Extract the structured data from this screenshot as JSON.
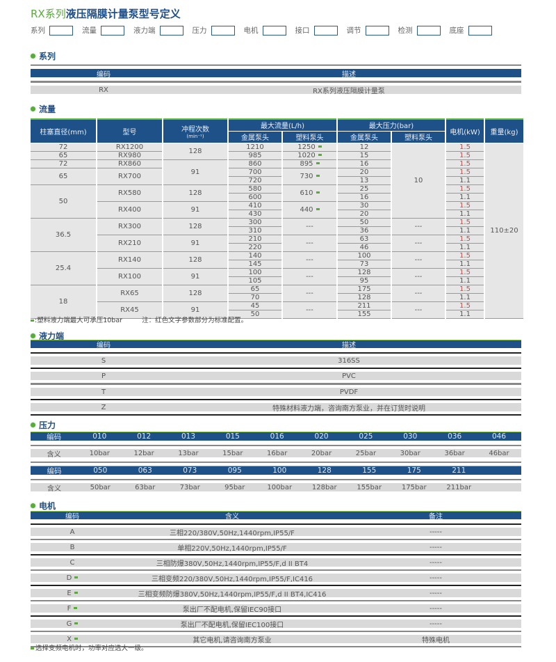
{
  "title": {
    "prefix": "RX系列",
    "main": "液压隔膜计量泵型号定义"
  },
  "code_fields": [
    "系列",
    "流量",
    "液力端",
    "压力",
    "电机",
    "接口",
    "调节",
    "检测",
    "底座"
  ],
  "colors": {
    "header_blue": "#1f5189",
    "accent_green": "#5aab3c",
    "standard_red": "#c0504d",
    "row_gray": "#d9d9d9"
  },
  "series": {
    "heading": "系列",
    "headers": [
      "编码",
      "描述"
    ],
    "rows": [
      [
        "RX",
        "RX系列液压隔膜计量泵"
      ]
    ]
  },
  "flow": {
    "heading": "流量",
    "headers": {
      "diameter": "柱塞直径(mm)",
      "model": "型号",
      "stroke": "冲程次数",
      "stroke_unit": "(min⁻¹)",
      "max_flow": "最大流量(L/h)",
      "max_pressure": "最大压力(bar)",
      "metal": "金属泵头",
      "plastic": "塑料泵头",
      "motor": "电机(kW)",
      "weight": "重量(kg)"
    },
    "columns": {
      "diameter": [
        {
          "v": "72",
          "span": 1
        },
        {
          "v": "65",
          "span": 1
        },
        {
          "v": "72",
          "span": 1
        },
        {
          "v": "65",
          "span": 2
        },
        {
          "v": "50",
          "span": 4
        },
        {
          "v": "36.5",
          "span": 4
        },
        {
          "v": "25.4",
          "span": 4
        },
        {
          "v": "18",
          "span": 4
        }
      ],
      "model": [
        {
          "v": "RX1200",
          "span": 1
        },
        {
          "v": "RX980",
          "span": 1
        },
        {
          "v": "RX860",
          "span": 1
        },
        {
          "v": "RX700",
          "span": 2
        },
        {
          "v": "RX580",
          "span": 2
        },
        {
          "v": "RX400",
          "span": 2
        },
        {
          "v": "RX300",
          "span": 2
        },
        {
          "v": "RX210",
          "span": 2
        },
        {
          "v": "RX140",
          "span": 2
        },
        {
          "v": "RX100",
          "span": 2
        },
        {
          "v": "RX65",
          "span": 2
        },
        {
          "v": "RX45",
          "span": 2
        }
      ],
      "stroke": [
        {
          "v": "128",
          "span": 2
        },
        {
          "v": "91",
          "span": 3
        },
        {
          "v": "128",
          "span": 2
        },
        {
          "v": "91",
          "span": 2
        },
        {
          "v": "128",
          "span": 2
        },
        {
          "v": "91",
          "span": 2
        },
        {
          "v": "128",
          "span": 2
        },
        {
          "v": "91",
          "span": 2
        },
        {
          "v": "128",
          "span": 2
        },
        {
          "v": "91",
          "span": 2
        }
      ],
      "flow_metal": [
        {
          "v": "1210",
          "span": 1
        },
        {
          "v": "985",
          "span": 1
        },
        {
          "v": "860",
          "span": 1
        },
        {
          "v": "700",
          "span": 1
        },
        {
          "v": "720",
          "span": 1
        },
        {
          "v": "580",
          "span": 1
        },
        {
          "v": "600",
          "span": 1
        },
        {
          "v": "410",
          "span": 1
        },
        {
          "v": "430",
          "span": 1
        },
        {
          "v": "300",
          "span": 1
        },
        {
          "v": "310",
          "span": 1
        },
        {
          "v": "210",
          "span": 1
        },
        {
          "v": "220",
          "span": 1
        },
        {
          "v": "140",
          "span": 1
        },
        {
          "v": "145",
          "span": 1
        },
        {
          "v": "100",
          "span": 1
        },
        {
          "v": "105",
          "span": 1
        },
        {
          "v": "65",
          "span": 1
        },
        {
          "v": "70",
          "span": 1
        },
        {
          "v": "45",
          "span": 1
        },
        {
          "v": "50",
          "span": 1
        }
      ],
      "flow_plastic": [
        {
          "v": "1250",
          "span": 1,
          "mark": true
        },
        {
          "v": "1020",
          "span": 1,
          "mark": true
        },
        {
          "v": "895",
          "span": 1,
          "mark": true
        },
        {
          "v": "730",
          "span": 2,
          "mark": true
        },
        {
          "v": "610",
          "span": 2,
          "mark": true
        },
        {
          "v": "440",
          "span": 2,
          "mark": true
        },
        {
          "v": "---",
          "span": 2
        },
        {
          "v": "---",
          "span": 2
        },
        {
          "v": "---",
          "span": 2
        },
        {
          "v": "---",
          "span": 2
        },
        {
          "v": "---",
          "span": 2
        },
        {
          "v": "---",
          "span": 2
        }
      ],
      "pressure_metal": [
        {
          "v": "12",
          "span": 1
        },
        {
          "v": "15",
          "span": 1
        },
        {
          "v": "16",
          "span": 1
        },
        {
          "v": "20",
          "span": 1
        },
        {
          "v": "13",
          "span": 1
        },
        {
          "v": "25",
          "span": 1
        },
        {
          "v": "16",
          "span": 1
        },
        {
          "v": "30",
          "span": 1
        },
        {
          "v": "20",
          "span": 1
        },
        {
          "v": "50",
          "span": 1
        },
        {
          "v": "36",
          "span": 1
        },
        {
          "v": "63",
          "span": 1
        },
        {
          "v": "46",
          "span": 1
        },
        {
          "v": "100",
          "span": 1
        },
        {
          "v": "73",
          "span": 1
        },
        {
          "v": "128",
          "span": 1
        },
        {
          "v": "95",
          "span": 1
        },
        {
          "v": "175",
          "span": 1
        },
        {
          "v": "128",
          "span": 1
        },
        {
          "v": "211",
          "span": 1
        },
        {
          "v": "155",
          "span": 1
        }
      ],
      "pressure_plastic": [
        {
          "v": "10",
          "span": 9
        },
        {
          "v": "---",
          "span": 2
        },
        {
          "v": "---",
          "span": 2
        },
        {
          "v": "---",
          "span": 2
        },
        {
          "v": "---",
          "span": 2
        },
        {
          "v": "---",
          "span": 2
        },
        {
          "v": "---",
          "span": 2
        }
      ],
      "motor": [
        {
          "v": "1.5",
          "span": 1,
          "red": true
        },
        {
          "v": "1.5",
          "span": 1,
          "red": true
        },
        {
          "v": "1.5",
          "span": 1,
          "red": true
        },
        {
          "v": "1.5",
          "span": 1,
          "red": true
        },
        {
          "v": "1.1",
          "span": 1
        },
        {
          "v": "1.5",
          "span": 1,
          "red": true
        },
        {
          "v": "1.1",
          "span": 1
        },
        {
          "v": "1.5",
          "span": 1,
          "red": true
        },
        {
          "v": "1.1",
          "span": 1
        },
        {
          "v": "1.5",
          "span": 1,
          "red": true
        },
        {
          "v": "1.1",
          "span": 1
        },
        {
          "v": "1.5",
          "span": 1,
          "red": true
        },
        {
          "v": "1.1",
          "span": 1
        },
        {
          "v": "1.5",
          "span": 1,
          "red": true
        },
        {
          "v": "1.1",
          "span": 1
        },
        {
          "v": "1.5",
          "span": 1,
          "red": true
        },
        {
          "v": "1.1",
          "span": 1
        },
        {
          "v": "1.5",
          "span": 1,
          "red": true
        },
        {
          "v": "1.1",
          "span": 1
        },
        {
          "v": "1.5",
          "span": 1,
          "red": true
        },
        {
          "v": "1.1",
          "span": 1
        }
      ],
      "weight": [
        {
          "v": "110±20",
          "span": 21
        }
      ]
    },
    "note_plastic": ":塑料液力端最大可承压10bar",
    "note_red": "注：红色文字参数部分为标准配置。"
  },
  "liquid_end": {
    "heading": "液力端",
    "headers": [
      "编码",
      "描述"
    ],
    "rows": [
      [
        "S",
        "316SS"
      ],
      [
        "P",
        "PVC"
      ],
      [
        "T",
        "PVDF"
      ],
      [
        "Z",
        "特殊材料液力端，咨询南方泵业，并在订货时说明"
      ]
    ]
  },
  "pressure": {
    "heading": "压力",
    "code_label": "编码",
    "meaning_label": "含义",
    "groups": [
      {
        "codes": [
          "010",
          "012",
          "013",
          "015",
          "016",
          "020",
          "025",
          "030",
          "036",
          "046"
        ],
        "meanings": [
          "10bar",
          "12bar",
          "13bar",
          "15bar",
          "16bar",
          "20bar",
          "25bar",
          "30bar",
          "36bar",
          "46bar"
        ]
      },
      {
        "codes": [
          "050",
          "063",
          "073",
          "095",
          "100",
          "128",
          "155",
          "175",
          "211"
        ],
        "meanings": [
          "50bar",
          "63bar",
          "73bar",
          "95bar",
          "100bar",
          "128bar",
          "155bar",
          "175bar",
          "211bar"
        ]
      }
    ]
  },
  "motor": {
    "heading": "电机",
    "headers": [
      "编码",
      "含义",
      "备注"
    ],
    "rows": [
      {
        "code": "A",
        "desc": "三相220/380V,50Hz,1440rpm,IP55/F",
        "remark": "-----"
      },
      {
        "code": "B",
        "desc": "单相220V,50Hz,1440rpm,IP55/F",
        "remark": "-----"
      },
      {
        "code": "C",
        "desc": "三相防爆380V,50Hz,1440rpm,IP55/F,d II BT4",
        "remark": "-----"
      },
      {
        "code": "D",
        "mark": true,
        "desc": "三相变频220/380V,50Hz,1440rpm,IP55/F,IC416",
        "remark": "-----"
      },
      {
        "code": "E",
        "mark": true,
        "desc": "三相变频防爆380V,50Hz,1440rpm,IP55/F,d II BT4,IC416",
        "remark": "-----"
      },
      {
        "code": "F",
        "mark": true,
        "desc": "泵出厂不配电机,保留IEC90接口",
        "remark": "-----"
      },
      {
        "code": "G",
        "mark": true,
        "desc": "泵出厂不配电机,保留IEC100接口",
        "remark": "-----"
      },
      {
        "code": "X",
        "mark": true,
        "desc": "其它电机,请咨询南方泵业",
        "remark": "特殊电机"
      }
    ],
    "note": "选择变频电机时，功率对应选大一级。"
  }
}
